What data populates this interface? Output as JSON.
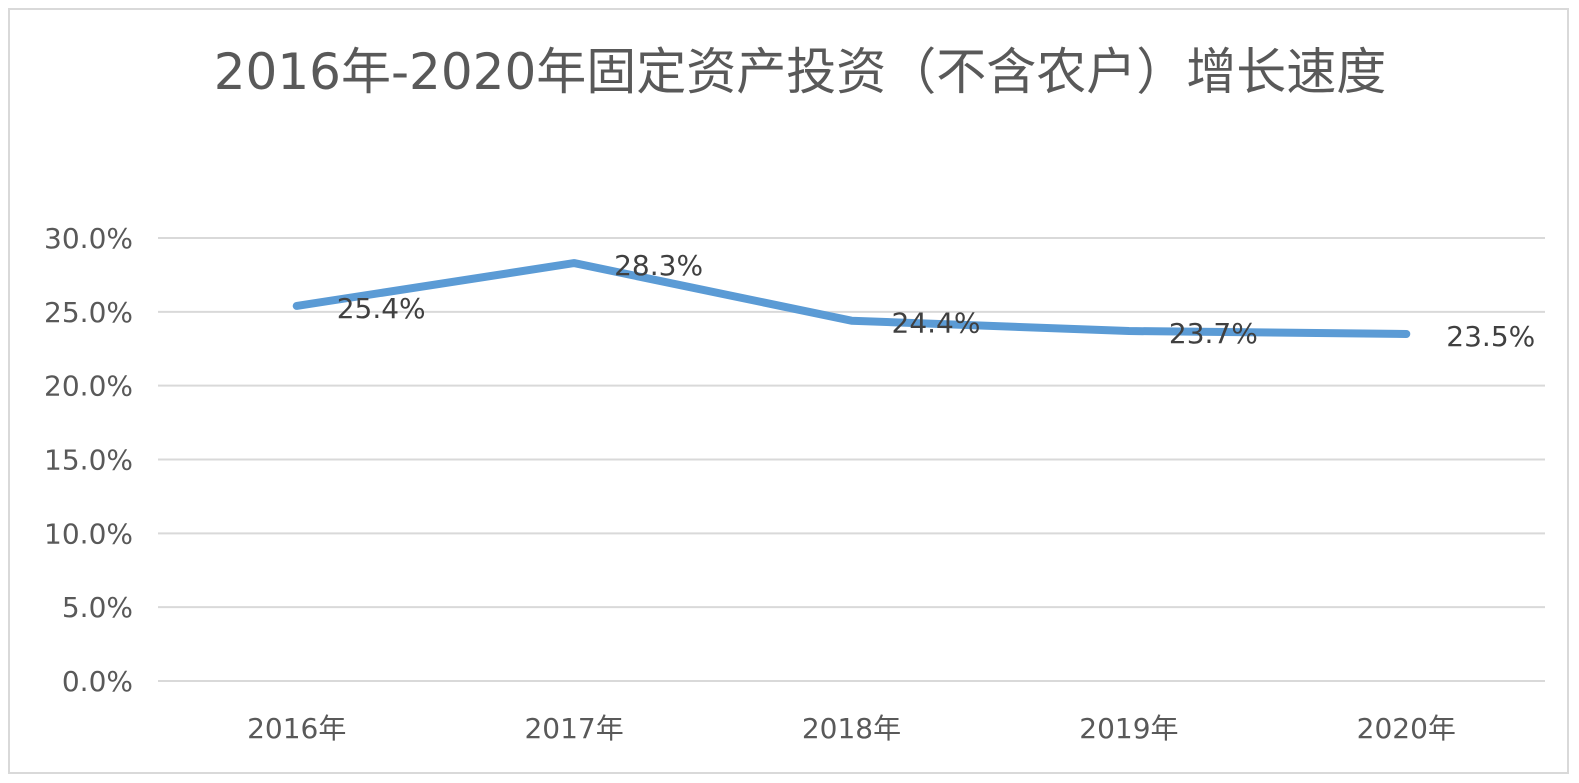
{
  "chart_data": {
    "type": "line",
    "title": "2016年-2020年固定资产投资（不含农户）增长速度",
    "categories": [
      "2016年",
      "2017年",
      "2018年",
      "2019年",
      "2020年"
    ],
    "series": [
      {
        "values": [
          25.4,
          28.3,
          24.4,
          23.7,
          23.5
        ],
        "labels": [
          "25.4%",
          "28.3%",
          "24.4%",
          "23.7%",
          "23.5%"
        ],
        "color": "#5b9bd5"
      }
    ],
    "ylim": [
      0,
      30
    ],
    "yticks": [
      0,
      5,
      10,
      15,
      20,
      25,
      30
    ],
    "ytick_labels": [
      "0.0%",
      "5.0%",
      "10.0%",
      "15.0%",
      "20.0%",
      "25.0%",
      "30.0%"
    ],
    "xlabel": "",
    "ylabel": "",
    "grid": true,
    "legend": "none",
    "gridline_color": "#d9d9d9",
    "text_color": "#595959"
  }
}
